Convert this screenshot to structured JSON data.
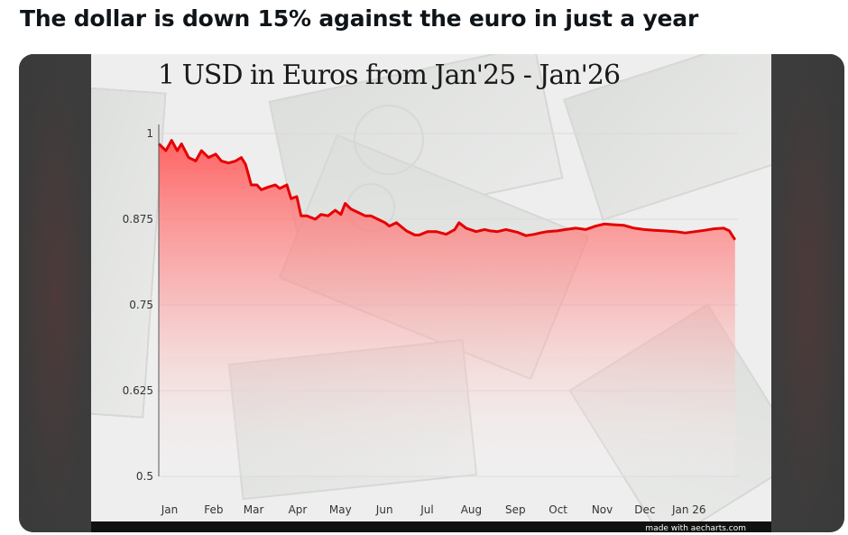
{
  "post": {
    "headline": "The dollar is down 15% against the euro in just a year"
  },
  "footer": {
    "credit": "made with aecharts.com"
  },
  "colors": {
    "line": "#e60000",
    "fill_top": "#ff5c5c",
    "grid": "#d9d9d9",
    "axis": "#555555",
    "text": "#333333"
  },
  "chart_data": {
    "type": "area",
    "title": "1 USD in Euros from Jan'25 - Jan'26",
    "xlabel": "",
    "ylabel": "",
    "ylim": [
      0.5,
      1.0
    ],
    "xlim": [
      "2025-01-01",
      "2026-02-12"
    ],
    "yticks": [
      "1",
      "0.875",
      "0.75",
      "0.625",
      "0.5"
    ],
    "ytick_values": [
      1.0,
      0.875,
      0.75,
      0.625,
      0.5
    ],
    "xticks": [
      "Jan",
      "Feb",
      "Mar",
      "Apr",
      "May",
      "Jun",
      "Jul",
      "Aug",
      "Sep",
      "Oct",
      "Nov",
      "Dec",
      "Jan 26"
    ],
    "grid": true,
    "legend": "none",
    "series": [
      {
        "x": [
          "2025-01-01",
          "2025-01-06",
          "2025-01-10",
          "2025-01-14",
          "2025-01-17",
          "2025-01-22",
          "2025-01-27",
          "2025-01-31",
          "2025-02-05",
          "2025-02-10",
          "2025-02-14",
          "2025-02-19",
          "2025-02-24",
          "2025-02-28",
          "2025-03-03",
          "2025-03-05",
          "2025-03-07",
          "2025-03-11",
          "2025-03-14",
          "2025-03-19",
          "2025-03-24",
          "2025-03-27",
          "2025-04-01",
          "2025-04-04",
          "2025-04-08",
          "2025-04-11",
          "2025-04-15",
          "2025-04-21",
          "2025-04-25",
          "2025-04-30",
          "2025-05-05",
          "2025-05-09",
          "2025-05-12",
          "2025-05-16",
          "2025-05-21",
          "2025-05-26",
          "2025-05-30",
          "2025-06-04",
          "2025-06-09",
          "2025-06-12",
          "2025-06-17",
          "2025-06-24",
          "2025-06-30",
          "2025-07-03",
          "2025-07-09",
          "2025-07-15",
          "2025-07-22",
          "2025-07-28",
          "2025-07-31",
          "2025-08-05",
          "2025-08-12",
          "2025-08-18",
          "2025-08-22",
          "2025-08-27",
          "2025-09-02",
          "2025-09-10",
          "2025-09-16",
          "2025-09-22",
          "2025-09-26",
          "2025-10-01",
          "2025-10-08",
          "2025-10-14",
          "2025-10-21",
          "2025-10-28",
          "2025-11-04",
          "2025-11-10",
          "2025-11-17",
          "2025-11-24",
          "2025-12-01",
          "2025-12-08",
          "2025-12-15",
          "2025-12-22",
          "2025-12-30",
          "2026-01-06",
          "2026-01-13",
          "2026-01-20",
          "2026-01-26",
          "2026-02-02",
          "2026-02-06",
          "2026-02-10"
        ],
        "y": [
          0.985,
          0.975,
          0.99,
          0.975,
          0.985,
          0.965,
          0.96,
          0.975,
          0.965,
          0.97,
          0.96,
          0.957,
          0.96,
          0.965,
          0.955,
          0.94,
          0.925,
          0.925,
          0.918,
          0.922,
          0.925,
          0.92,
          0.925,
          0.905,
          0.908,
          0.88,
          0.88,
          0.875,
          0.882,
          0.88,
          0.888,
          0.882,
          0.898,
          0.89,
          0.885,
          0.88,
          0.88,
          0.875,
          0.87,
          0.865,
          0.87,
          0.858,
          0.852,
          0.852,
          0.857,
          0.857,
          0.853,
          0.86,
          0.87,
          0.862,
          0.857,
          0.86,
          0.858,
          0.857,
          0.86,
          0.856,
          0.851,
          0.853,
          0.855,
          0.857,
          0.858,
          0.86,
          0.862,
          0.86,
          0.865,
          0.868,
          0.867,
          0.866,
          0.862,
          0.86,
          0.859,
          0.858,
          0.857,
          0.855,
          0.857,
          0.859,
          0.861,
          0.862,
          0.858,
          0.845
        ]
      }
    ]
  }
}
